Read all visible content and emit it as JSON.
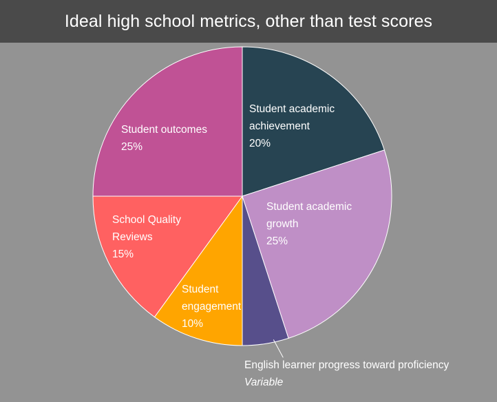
{
  "header": {
    "title": "Ideal high school metrics, other than test scores"
  },
  "colors": {
    "background": "#939393",
    "header_bg": "#4a4a4a",
    "slice_border": "#ffffff"
  },
  "chart_data": {
    "type": "pie",
    "title": "Ideal high school metrics, other than test scores",
    "start_angle_deg": 0,
    "direction": "clockwise",
    "slices": [
      {
        "name": "Student academic achievement",
        "label_lines": [
          "Student academic",
          "achievement"
        ],
        "value": 20,
        "display_value": "20%",
        "color": "#274452"
      },
      {
        "name": "Student academic growth",
        "label_lines": [
          "Student academic",
          "growth"
        ],
        "value": 25,
        "display_value": "25%",
        "color": "#bf8fc6"
      },
      {
        "name": "English learner progress toward proficiency",
        "label_lines": [
          "English learner progress toward proficiency"
        ],
        "value": 5,
        "display_value": "Variable",
        "color": "#574f8b",
        "callout": true
      },
      {
        "name": "Student engagement",
        "label_lines": [
          "Student",
          "engagement"
        ],
        "value": 10,
        "display_value": "10%",
        "color": "#ffa500"
      },
      {
        "name": "School Quality Reviews",
        "label_lines": [
          "School Quality",
          "Reviews"
        ],
        "value": 15,
        "display_value": "15%",
        "color": "#ff6161"
      },
      {
        "name": "Student outcomes",
        "label_lines": [
          "Student outcomes"
        ],
        "value": 25,
        "display_value": "25%",
        "color": "#c05295"
      }
    ]
  }
}
